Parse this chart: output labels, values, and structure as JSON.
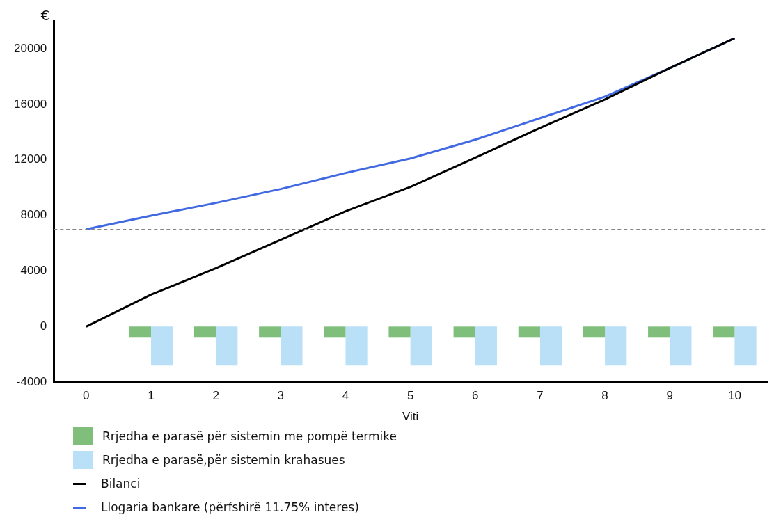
{
  "chart_data": {
    "type": "bar",
    "xlabel": "Viti",
    "ylabel": "€",
    "categories": [
      "0",
      "1",
      "2",
      "3",
      "4",
      "5",
      "6",
      "7",
      "8",
      "9",
      "10"
    ],
    "series": [
      {
        "name": "Rrjedha e parasë për sistemin me pompë termike",
        "color": "#7fbf7b",
        "values": [
          null,
          -800,
          -800,
          -800,
          -800,
          -800,
          -800,
          -800,
          -800,
          -800,
          -800
        ]
      },
      {
        "name": "Rrjedha e parasë,për sistemin krahasues",
        "color": "#b9e0f7",
        "values": [
          null,
          -2800,
          -2800,
          -2800,
          -2800,
          -2800,
          -2800,
          -2800,
          -2800,
          -2800,
          -2800
        ]
      },
      {
        "name": "Bilanci",
        "type": "line",
        "color": "#000000",
        "values": [
          0,
          2300,
          4200,
          6250,
          8300,
          10050,
          12150,
          14300,
          16350,
          18600,
          20750
        ]
      },
      {
        "name": "Llogaria bankare (përfshirë 11.75% interes)",
        "type": "line",
        "color": "#4169e1",
        "values": [
          7000,
          7980,
          8900,
          9900,
          11050,
          12100,
          13450,
          15000,
          16550,
          18600,
          20750
        ]
      }
    ],
    "ylim": [
      -4000,
      22000
    ],
    "yticks": [
      -4000,
      0,
      4000,
      8000,
      12000,
      16000,
      20000
    ],
    "ref_lines": [
      {
        "axis": "y",
        "value": 7000,
        "color": "#808080",
        "line_style": "dashed"
      }
    ],
    "grid": false,
    "legend": "bottom",
    "marker": "none"
  }
}
